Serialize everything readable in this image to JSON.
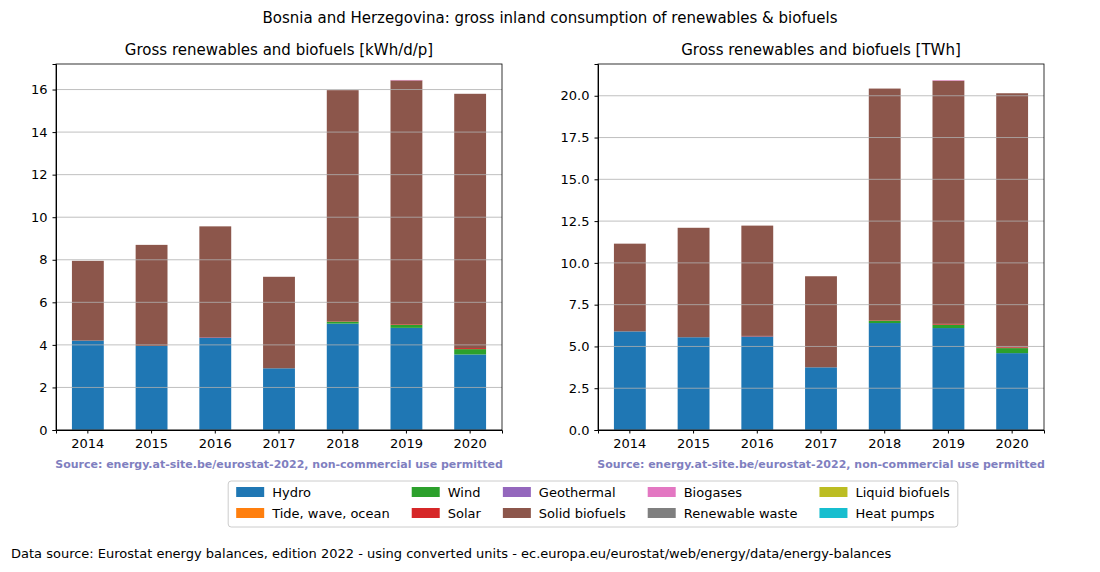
{
  "title": "Bosnia and Herzegovina: gross inland consumption of renewables & biofuels",
  "footer": "Data source: Eurostat energy balances, edition 2022 - using converted units - ec.europa.eu/eurostat/web/energy/data/energy-balances",
  "chart_data": [
    {
      "type": "bar",
      "title": "Gross renewables and biofuels [kWh/d/p]",
      "stacked": true,
      "grid": true,
      "legend": "bottom",
      "annotations": [
        "Source: energy.at-site.be/eurostat-2022, non-commercial use permitted"
      ],
      "categories": [
        "2014",
        "2015",
        "2016",
        "2017",
        "2018",
        "2019",
        "2020"
      ],
      "ylim": [
        0,
        17.2
      ],
      "yticks": [
        0,
        2,
        4,
        6,
        8,
        10,
        12,
        14,
        16
      ],
      "series": [
        {
          "name": "Hydro",
          "color": "#1f77b4",
          "values": [
            4.2,
            3.95,
            4.35,
            2.9,
            5.0,
            4.8,
            3.55
          ]
        },
        {
          "name": "Tide, wave, ocean",
          "color": "#ff7f0e",
          "values": [
            0,
            0,
            0,
            0,
            0,
            0,
            0
          ]
        },
        {
          "name": "Wind",
          "color": "#2ca02c",
          "values": [
            0,
            0,
            0,
            0,
            0.1,
            0.15,
            0.25
          ]
        },
        {
          "name": "Solar",
          "color": "#d62728",
          "values": [
            0,
            0,
            0.02,
            0,
            0.02,
            0.03,
            0.05
          ]
        },
        {
          "name": "Geothermal",
          "color": "#9467bd",
          "values": [
            0,
            0,
            0,
            0,
            0,
            0,
            0
          ]
        },
        {
          "name": "Solid biofuels",
          "color": "#8c564b",
          "values": [
            3.75,
            4.75,
            5.2,
            4.3,
            10.85,
            11.45,
            11.95
          ]
        },
        {
          "name": "Biogases",
          "color": "#e377c2",
          "values": [
            0,
            0,
            0,
            0,
            0,
            0.02,
            0
          ]
        },
        {
          "name": "Renewable waste",
          "color": "#7f7f7f",
          "values": [
            0,
            0,
            0,
            0,
            0,
            0,
            0
          ]
        },
        {
          "name": "Liquid biofuels",
          "color": "#bcbd22",
          "values": [
            0,
            0,
            0,
            0,
            0,
            0,
            0
          ]
        },
        {
          "name": "Heat pumps",
          "color": "#17becf",
          "values": [
            0,
            0,
            0,
            0,
            0,
            0,
            0
          ]
        }
      ]
    },
    {
      "type": "bar",
      "title": "Gross renewables and biofuels [TWh]",
      "stacked": true,
      "grid": true,
      "annotations": [
        "Source: energy.at-site.be/eurostat-2022, non-commercial use permitted"
      ],
      "categories": [
        "2014",
        "2015",
        "2016",
        "2017",
        "2018",
        "2019",
        "2020"
      ],
      "ylim": [
        0,
        21.9
      ],
      "yticks": [
        {
          "value": 0,
          "label": "0.0"
        },
        {
          "value": 2.5,
          "label": "2.5"
        },
        {
          "value": 5,
          "label": "5.0"
        },
        {
          "value": 7.5,
          "label": "7.5"
        },
        {
          "value": 10,
          "label": "10.0"
        },
        {
          "value": 12.5,
          "label": "12.5"
        },
        {
          "value": 15,
          "label": "15.0"
        },
        {
          "value": 17.5,
          "label": "17.5"
        },
        {
          "value": 20,
          "label": "20.0"
        }
      ],
      "series": [
        {
          "name": "Hydro",
          "color": "#1f77b4",
          "values": [
            5.9,
            5.55,
            5.6,
            3.75,
            6.4,
            6.1,
            4.6
          ]
        },
        {
          "name": "Tide, wave, ocean",
          "color": "#ff7f0e",
          "values": [
            0,
            0,
            0,
            0,
            0,
            0,
            0
          ]
        },
        {
          "name": "Wind",
          "color": "#2ca02c",
          "values": [
            0,
            0,
            0,
            0,
            0.15,
            0.2,
            0.3
          ]
        },
        {
          "name": "Solar",
          "color": "#d62728",
          "values": [
            0,
            0,
            0.03,
            0,
            0.03,
            0.05,
            0.05
          ]
        },
        {
          "name": "Geothermal",
          "color": "#9467bd",
          "values": [
            0,
            0,
            0,
            0,
            0,
            0,
            0
          ]
        },
        {
          "name": "Solid biofuels",
          "color": "#8c564b",
          "values": [
            5.25,
            6.55,
            6.6,
            5.45,
            13.85,
            14.55,
            15.2
          ]
        },
        {
          "name": "Biogases",
          "color": "#e377c2",
          "values": [
            0,
            0,
            0,
            0,
            0,
            0.03,
            0
          ]
        },
        {
          "name": "Renewable waste",
          "color": "#7f7f7f",
          "values": [
            0,
            0,
            0,
            0,
            0,
            0,
            0
          ]
        },
        {
          "name": "Liquid biofuels",
          "color": "#bcbd22",
          "values": [
            0,
            0,
            0,
            0,
            0,
            0,
            0
          ]
        },
        {
          "name": "Heat pumps",
          "color": "#17becf",
          "values": [
            0,
            0,
            0,
            0,
            0,
            0,
            0
          ]
        }
      ]
    }
  ]
}
